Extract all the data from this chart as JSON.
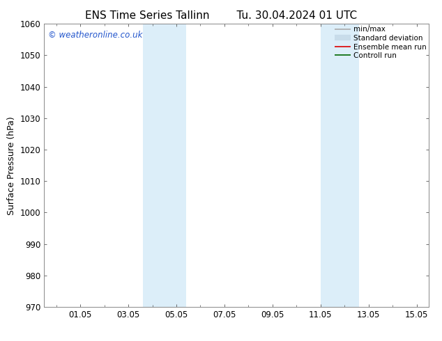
{
  "title_left": "ENS Time Series Tallinn",
  "title_right": "Tu. 30.04.2024 01 UTC",
  "ylabel": "Surface Pressure (hPa)",
  "ylim": [
    970,
    1060
  ],
  "yticks": [
    970,
    980,
    990,
    1000,
    1010,
    1020,
    1030,
    1040,
    1050,
    1060
  ],
  "xlim": [
    -0.5,
    15.5
  ],
  "xtick_positions": [
    1,
    3,
    5,
    7,
    9,
    11,
    13,
    15
  ],
  "xtick_labels": [
    "01.05",
    "03.05",
    "05.05",
    "07.05",
    "09.05",
    "11.05",
    "13.05",
    "15.05"
  ],
  "background_color": "#ffffff",
  "shaded_bands": [
    {
      "x_start": 3.6,
      "x_end": 5.4
    },
    {
      "x_start": 11.0,
      "x_end": 12.6
    }
  ],
  "shaded_color": "#dceef9",
  "watermark_text": "© weatheronline.co.uk",
  "watermark_color": "#2255cc",
  "legend_items": [
    {
      "label": "min/max",
      "color": "#aaaaaa",
      "lw": 1.2
    },
    {
      "label": "Standard deviation",
      "color": "#c8dcea",
      "lw": 6
    },
    {
      "label": "Ensemble mean run",
      "color": "#dd0000",
      "lw": 1.2
    },
    {
      "label": "Controll run",
      "color": "#006600",
      "lw": 1.2
    }
  ],
  "spine_color": "#888888",
  "tick_color": "#555555",
  "title_fontsize": 11,
  "axis_fontsize": 9,
  "tick_fontsize": 8.5,
  "watermark_fontsize": 8.5,
  "legend_fontsize": 7.5
}
